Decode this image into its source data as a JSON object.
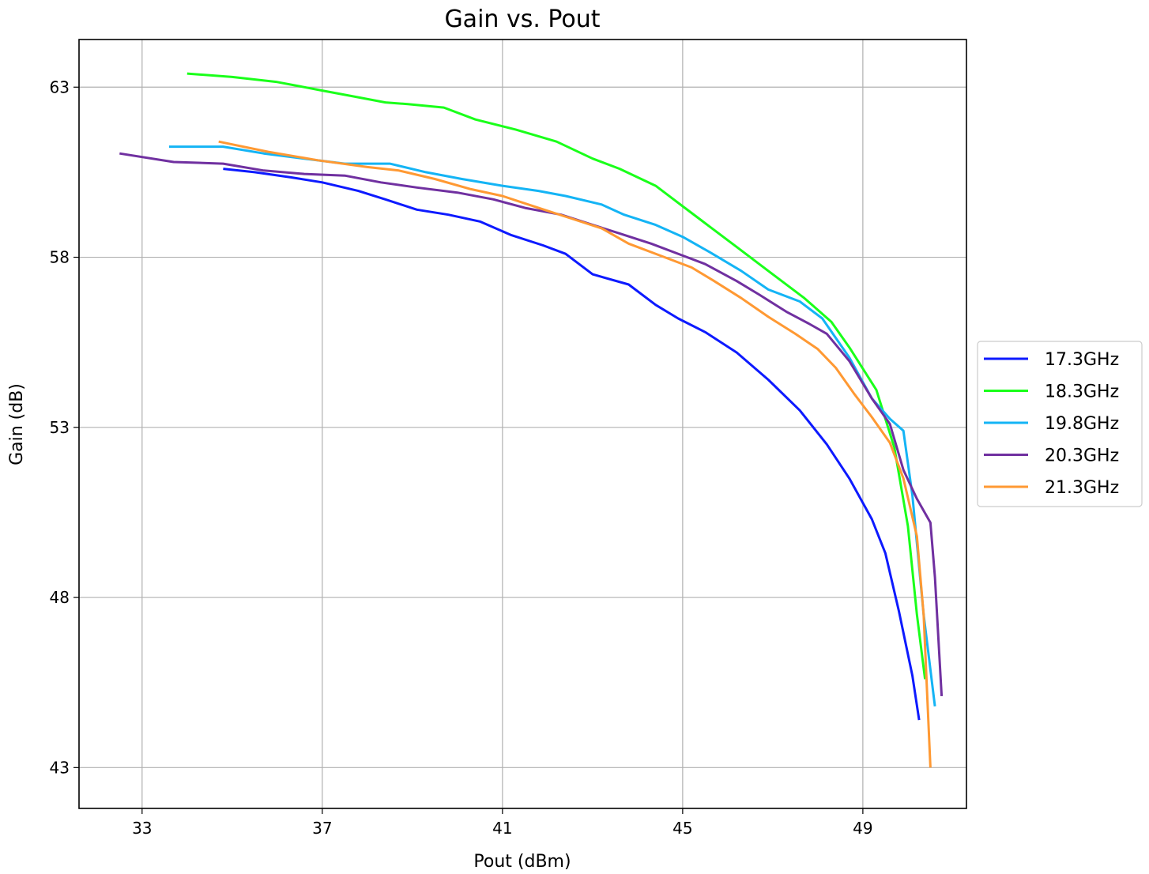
{
  "chart_data": {
    "type": "line",
    "title": "Gain vs. Pout",
    "xlabel": "Pout (dBm)",
    "ylabel": "Gain (dB)",
    "xlim": [
      31.6,
      51.3
    ],
    "ylim": [
      41.8,
      64.4
    ],
    "xticks": [
      33,
      37,
      41,
      45,
      49
    ],
    "yticks": [
      43,
      48,
      53,
      58,
      63
    ],
    "grid": true,
    "legend_position": "right",
    "series": [
      {
        "name": "17.3GHz",
        "color": "#0d1aff",
        "points": [
          [
            34.8,
            60.6
          ],
          [
            35.5,
            60.5
          ],
          [
            36.3,
            60.35
          ],
          [
            37,
            60.2
          ],
          [
            37.8,
            59.95
          ],
          [
            38.4,
            59.7
          ],
          [
            39.1,
            59.4
          ],
          [
            39.8,
            59.25
          ],
          [
            40.5,
            59.05
          ],
          [
            41.2,
            58.65
          ],
          [
            41.9,
            58.35
          ],
          [
            42.4,
            58.1
          ],
          [
            43,
            57.5
          ],
          [
            43.8,
            57.2
          ],
          [
            44.4,
            56.6
          ],
          [
            44.9,
            56.2
          ],
          [
            45.5,
            55.8
          ],
          [
            46.2,
            55.2
          ],
          [
            46.9,
            54.4
          ],
          [
            47.6,
            53.5
          ],
          [
            48.2,
            52.5
          ],
          [
            48.7,
            51.5
          ],
          [
            49.2,
            50.3
          ],
          [
            49.5,
            49.3
          ],
          [
            49.8,
            47.6
          ],
          [
            50.1,
            45.7
          ],
          [
            50.25,
            44.4
          ]
        ]
      },
      {
        "name": "18.3GHz",
        "color": "#1aff1a",
        "points": [
          [
            34,
            63.4
          ],
          [
            35,
            63.3
          ],
          [
            36,
            63.15
          ],
          [
            37,
            62.9
          ],
          [
            37.6,
            62.75
          ],
          [
            38.4,
            62.55
          ],
          [
            38.9,
            62.5
          ],
          [
            39.7,
            62.4
          ],
          [
            40.4,
            62.05
          ],
          [
            41.3,
            61.75
          ],
          [
            42.2,
            61.4
          ],
          [
            43,
            60.9
          ],
          [
            43.6,
            60.6
          ],
          [
            44.4,
            60.1
          ],
          [
            45,
            59.5
          ],
          [
            45.6,
            58.9
          ],
          [
            46.2,
            58.3
          ],
          [
            46.9,
            57.6
          ],
          [
            47.7,
            56.8
          ],
          [
            48.3,
            56.1
          ],
          [
            48.7,
            55.35
          ],
          [
            49.3,
            54.1
          ],
          [
            49.7,
            52.4
          ],
          [
            50,
            50.1
          ],
          [
            50.2,
            47.5
          ],
          [
            50.38,
            45.6
          ]
        ]
      },
      {
        "name": "19.8GHz",
        "color": "#14b4f5",
        "points": [
          [
            33.6,
            61.25
          ],
          [
            34.8,
            61.25
          ],
          [
            35.7,
            61.05
          ],
          [
            36.6,
            60.9
          ],
          [
            37.5,
            60.75
          ],
          [
            38.5,
            60.75
          ],
          [
            39.3,
            60.5
          ],
          [
            40.1,
            60.3
          ],
          [
            41,
            60.1
          ],
          [
            41.8,
            59.95
          ],
          [
            42.4,
            59.8
          ],
          [
            43.2,
            59.55
          ],
          [
            43.7,
            59.25
          ],
          [
            44.4,
            58.95
          ],
          [
            45,
            58.6
          ],
          [
            45.6,
            58.15
          ],
          [
            46.3,
            57.6
          ],
          [
            46.9,
            57.05
          ],
          [
            47.6,
            56.7
          ],
          [
            48.1,
            56.2
          ],
          [
            48.7,
            55.05
          ],
          [
            49.2,
            53.85
          ],
          [
            49.6,
            53.25
          ],
          [
            49.9,
            52.9
          ],
          [
            50.1,
            51
          ],
          [
            50.35,
            47.5
          ],
          [
            50.6,
            44.8
          ]
        ]
      },
      {
        "name": "20.3GHz",
        "color": "#7030a0",
        "points": [
          [
            32.5,
            61.05
          ],
          [
            33.7,
            60.8
          ],
          [
            34.8,
            60.75
          ],
          [
            35.7,
            60.55
          ],
          [
            36.6,
            60.45
          ],
          [
            37.5,
            60.4
          ],
          [
            38.3,
            60.2
          ],
          [
            39.1,
            60.05
          ],
          [
            40,
            59.9
          ],
          [
            40.8,
            59.7
          ],
          [
            41.5,
            59.45
          ],
          [
            42.3,
            59.25
          ],
          [
            43,
            58.95
          ],
          [
            43.6,
            58.7
          ],
          [
            44.3,
            58.4
          ],
          [
            45,
            58.05
          ],
          [
            45.5,
            57.8
          ],
          [
            46.2,
            57.3
          ],
          [
            46.7,
            56.9
          ],
          [
            47.3,
            56.4
          ],
          [
            47.8,
            56.05
          ],
          [
            48.2,
            55.75
          ],
          [
            48.7,
            54.95
          ],
          [
            49.2,
            53.85
          ],
          [
            49.6,
            53.1
          ],
          [
            49.9,
            51.75
          ],
          [
            50.2,
            50.9
          ],
          [
            50.5,
            50.2
          ],
          [
            50.6,
            48.6
          ],
          [
            50.75,
            45.1
          ]
        ]
      },
      {
        "name": "21.3GHz",
        "color": "#ff9933",
        "points": [
          [
            34.7,
            61.4
          ],
          [
            35.8,
            61.1
          ],
          [
            36.9,
            60.85
          ],
          [
            38,
            60.65
          ],
          [
            38.7,
            60.55
          ],
          [
            39.5,
            60.3
          ],
          [
            40.3,
            60
          ],
          [
            41,
            59.8
          ],
          [
            41.8,
            59.45
          ],
          [
            42.5,
            59.15
          ],
          [
            43.2,
            58.85
          ],
          [
            43.8,
            58.4
          ],
          [
            44.5,
            58.05
          ],
          [
            45.2,
            57.7
          ],
          [
            45.7,
            57.3
          ],
          [
            46.3,
            56.8
          ],
          [
            46.9,
            56.25
          ],
          [
            47.5,
            55.75
          ],
          [
            48,
            55.3
          ],
          [
            48.4,
            54.75
          ],
          [
            48.8,
            54
          ],
          [
            49.2,
            53.3
          ],
          [
            49.6,
            52.55
          ],
          [
            49.9,
            51.5
          ],
          [
            50.2,
            49.8
          ],
          [
            50.35,
            47.5
          ],
          [
            50.5,
            43
          ]
        ]
      }
    ]
  }
}
